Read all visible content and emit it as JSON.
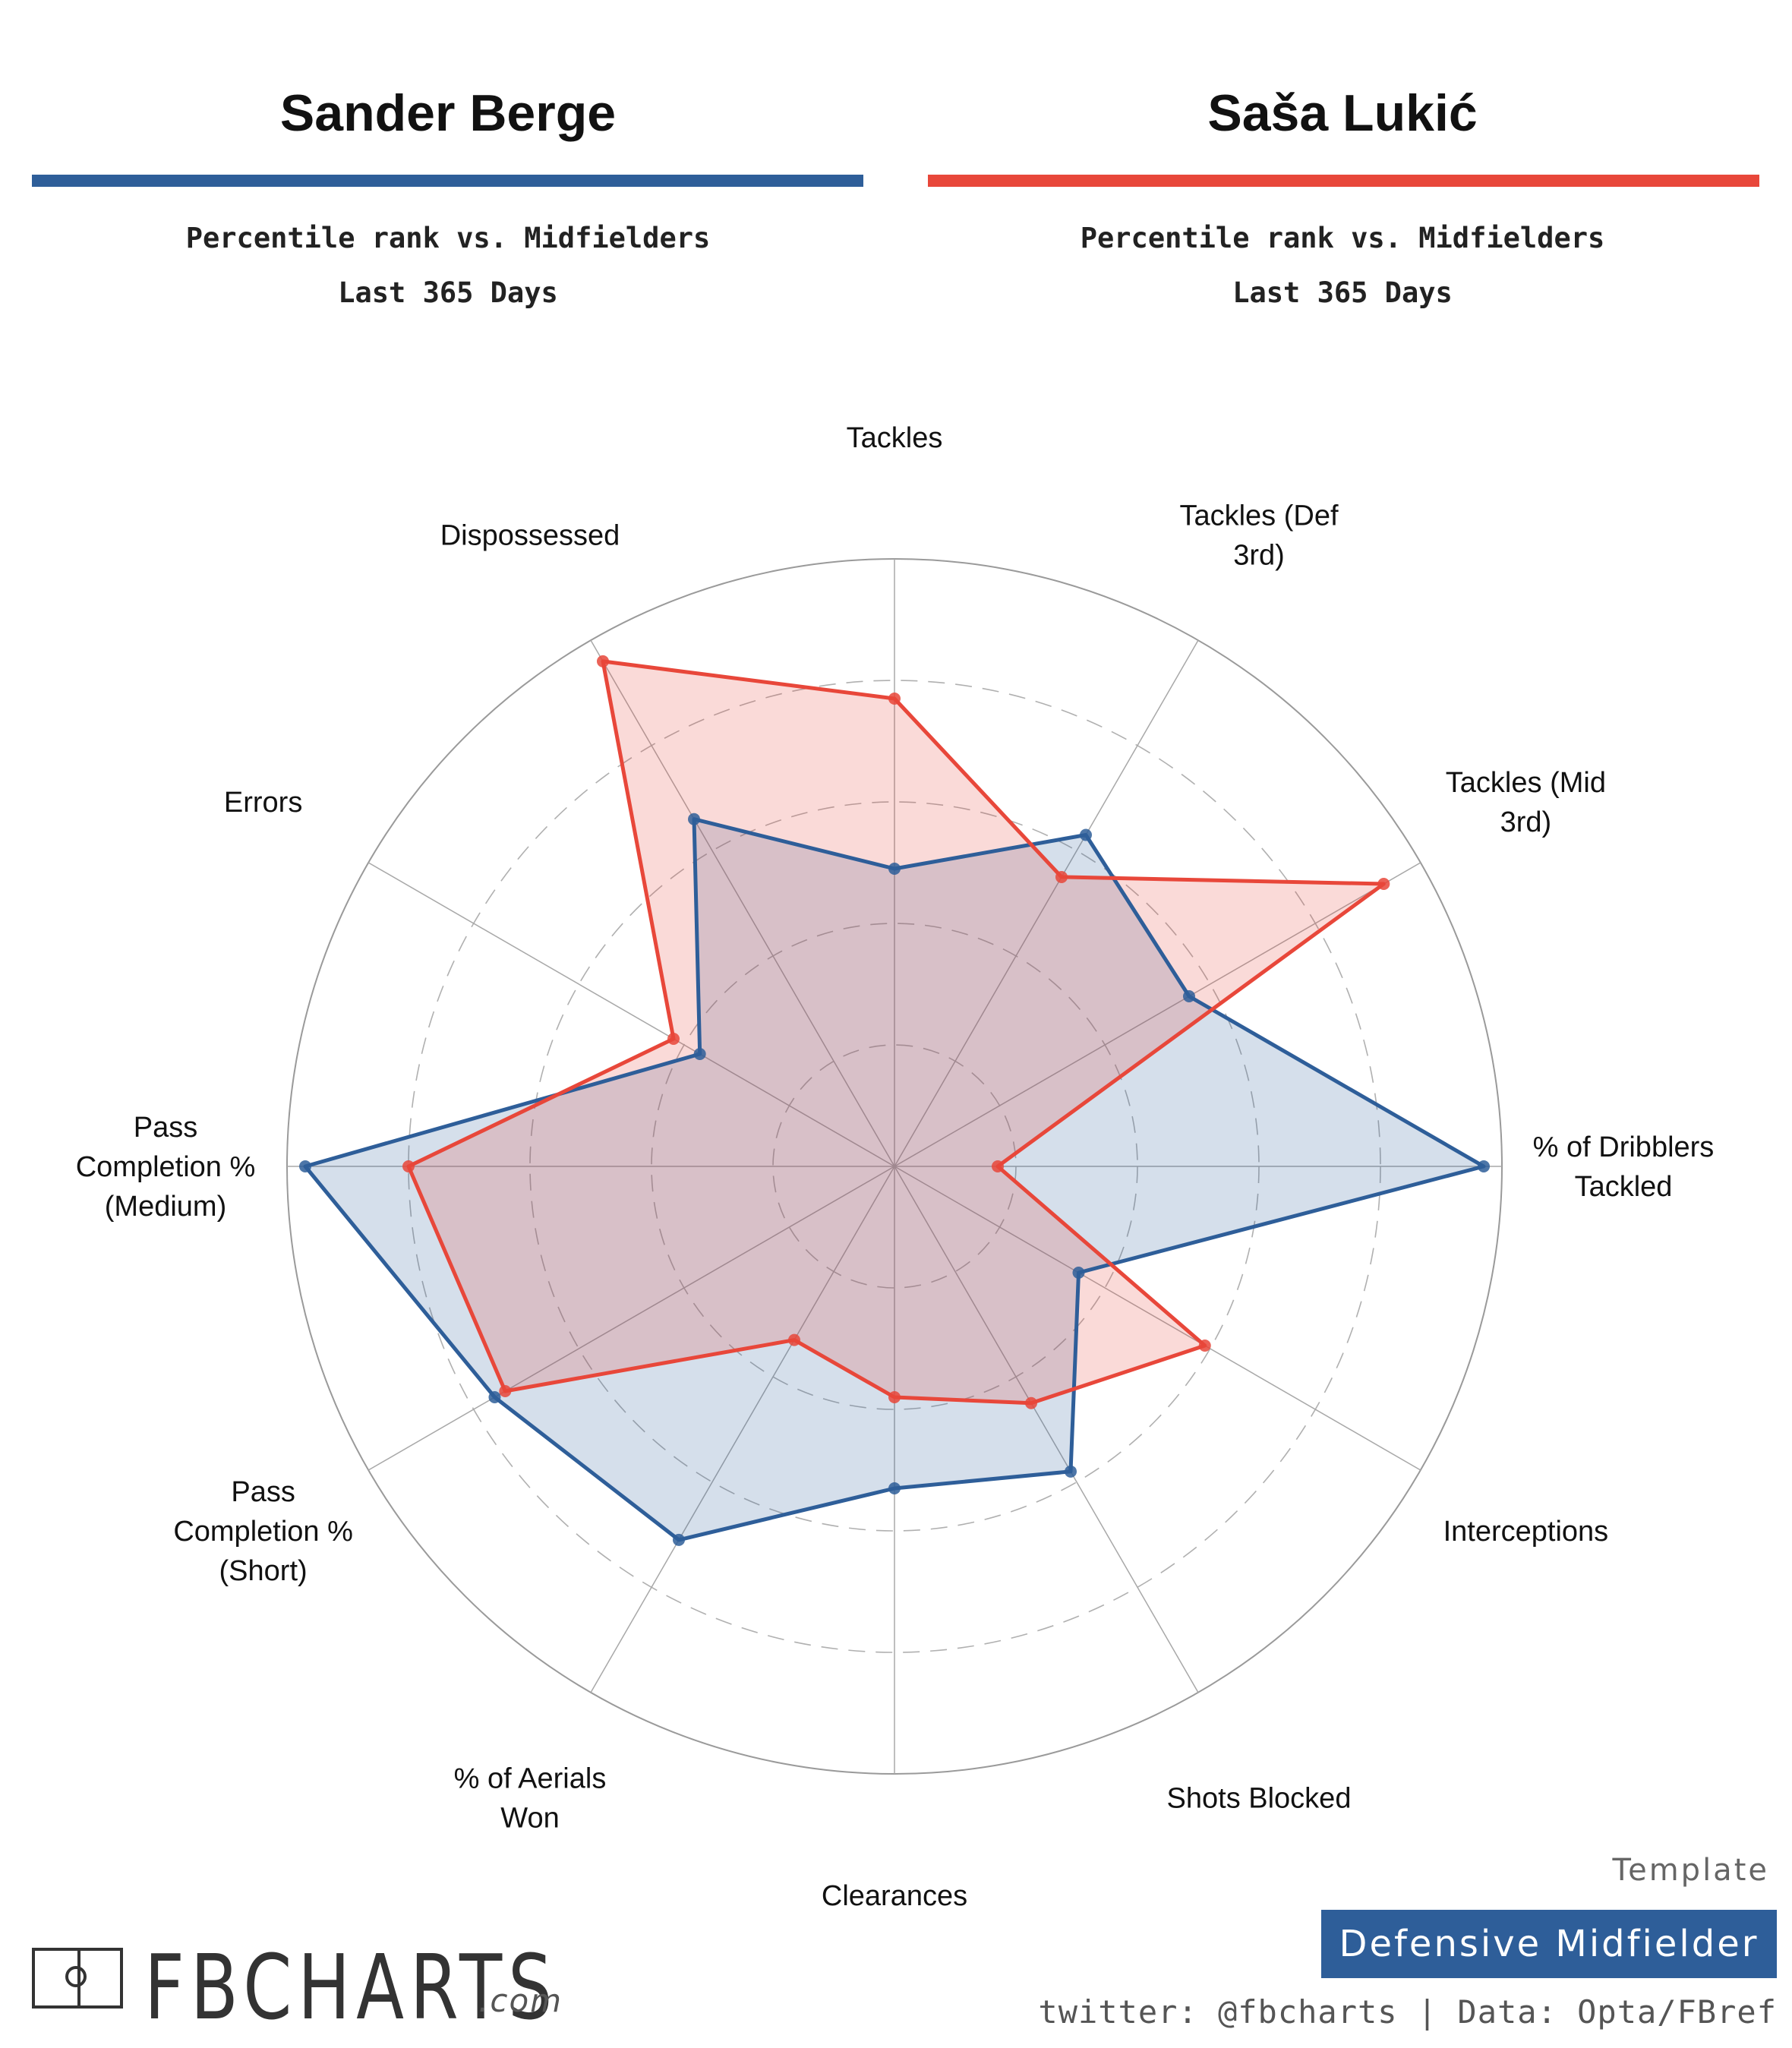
{
  "left_player": {
    "name": "Sander Berge",
    "subtitle": "Percentile rank vs. Midfielders",
    "period": "Last 365 Days",
    "color": "#2e5e99"
  },
  "right_player": {
    "name": "Saša Lukić",
    "subtitle": "Percentile rank vs. Midfielders",
    "period": "Last 365 Days",
    "color": "#e8473a"
  },
  "chart_data": {
    "type": "radar",
    "axes": [
      [
        "Tackles"
      ],
      [
        "Tackles (Def",
        "3rd)"
      ],
      [
        "Tackles (Mid",
        "3rd)"
      ],
      [
        "% of Dribblers",
        "Tackled"
      ],
      [
        "Interceptions"
      ],
      [
        "Shots Blocked"
      ],
      [
        "Clearances"
      ],
      [
        "% of Aerials",
        "Won"
      ],
      [
        "Pass",
        "Completion %",
        "(Short)"
      ],
      [
        "Pass",
        "Completion %",
        "(Medium)"
      ],
      [
        "Errors"
      ],
      [
        "Dispossessed"
      ]
    ],
    "range": [
      0,
      100
    ],
    "rings": [
      20,
      40,
      60,
      80,
      100
    ],
    "series": [
      {
        "name": "Sander Berge",
        "color": "#2e5e99",
        "values": [
          49,
          63,
          56,
          97,
          35,
          58,
          53,
          71,
          76,
          97,
          37,
          66
        ]
      },
      {
        "name": "Saša Lukić",
        "color": "#e8473a",
        "values": [
          77,
          55,
          93,
          17,
          59,
          45,
          38,
          33,
          74,
          80,
          42,
          96
        ]
      }
    ]
  },
  "footer": {
    "template_label": "Template",
    "template_value": "Defensive Midfielder",
    "credit": "twitter: @fbcharts | Data: Opta/FBref",
    "logo_text": "FBCHARTS",
    "logo_suffix": ".com"
  }
}
